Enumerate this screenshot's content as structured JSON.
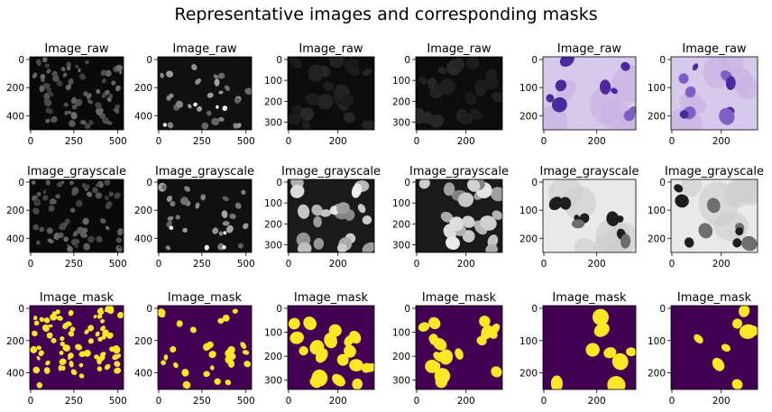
{
  "figure": {
    "title": "Representative images and corresponding masks"
  },
  "chart_data": {
    "type": "image_grid",
    "title": "Representative images and corresponding masks",
    "rows": 3,
    "cols": 6,
    "panels": [
      {
        "title": "Image_raw",
        "style": "dark-fluorescent",
        "xticks": [
          "0",
          "250",
          "500"
        ],
        "yticks": [
          "0",
          "200",
          "400"
        ]
      },
      {
        "title": "Image_raw",
        "style": "fluorescent-bright",
        "xticks": [
          "0",
          "250",
          "500"
        ],
        "yticks": [
          "0",
          "200",
          "400"
        ]
      },
      {
        "title": "Image_raw",
        "style": "very-dark",
        "xticks": [
          "0",
          "200"
        ],
        "yticks": [
          "0",
          "100",
          "200",
          "300"
        ]
      },
      {
        "title": "Image_raw",
        "style": "very-dark",
        "xticks": [
          "0",
          "200"
        ],
        "yticks": [
          "0",
          "100",
          "200",
          "300"
        ]
      },
      {
        "title": "Image_raw",
        "style": "purple-histology",
        "xticks": [
          "0",
          "200"
        ],
        "yticks": [
          "0",
          "100",
          "200"
        ]
      },
      {
        "title": "Image_raw",
        "style": "purple-histology",
        "xticks": [
          "0",
          "200"
        ],
        "yticks": [
          "0",
          "100",
          "200"
        ]
      },
      {
        "title": "Image_grayscale",
        "style": "dark-fluorescent",
        "xticks": [
          "0",
          "250",
          "500"
        ],
        "yticks": [
          "0",
          "200",
          "400"
        ]
      },
      {
        "title": "Image_grayscale",
        "style": "fluorescent-bright",
        "xticks": [
          "0",
          "250",
          "500"
        ],
        "yticks": [
          "0",
          "200",
          "400"
        ]
      },
      {
        "title": "Image_grayscale",
        "style": "gray-nuclei",
        "xticks": [
          "0",
          "200"
        ],
        "yticks": [
          "0",
          "100",
          "200",
          "300"
        ]
      },
      {
        "title": "Image_grayscale",
        "style": "gray-nuclei",
        "xticks": [
          "0",
          "200"
        ],
        "yticks": [
          "0",
          "100",
          "200",
          "300"
        ]
      },
      {
        "title": "Image_grayscale",
        "style": "gray-histology",
        "xticks": [
          "0",
          "200"
        ],
        "yticks": [
          "0",
          "100",
          "200"
        ]
      },
      {
        "title": "Image_grayscale",
        "style": "gray-histology",
        "xticks": [
          "0",
          "200"
        ],
        "yticks": [
          "0",
          "100",
          "200"
        ]
      },
      {
        "title": "Image_mask",
        "style": "mask-dense",
        "xticks": [
          "0",
          "250",
          "500"
        ],
        "yticks": [
          "0",
          "200",
          "400"
        ]
      },
      {
        "title": "Image_mask",
        "style": "mask-sparse",
        "xticks": [
          "0",
          "250",
          "500"
        ],
        "yticks": [
          "0",
          "200",
          "400"
        ]
      },
      {
        "title": "Image_mask",
        "style": "mask-medium",
        "xticks": [
          "0",
          "200"
        ],
        "yticks": [
          "0",
          "100",
          "200",
          "300"
        ]
      },
      {
        "title": "Image_mask",
        "style": "mask-medium",
        "xticks": [
          "0",
          "200"
        ],
        "yticks": [
          "0",
          "100",
          "200",
          "300"
        ]
      },
      {
        "title": "Image_mask",
        "style": "mask-sparse-large",
        "xticks": [
          "0",
          "200"
        ],
        "yticks": [
          "0",
          "100",
          "200"
        ]
      },
      {
        "title": "Image_mask",
        "style": "mask-sparse-large",
        "xticks": [
          "0",
          "200"
        ],
        "yticks": [
          "0",
          "100",
          "200"
        ]
      }
    ],
    "colors": {
      "mask_background": "#440154",
      "mask_foreground": "#fde725",
      "histology_background": "#d7c9ec",
      "histology_nucleus": "#4b2aa0"
    }
  }
}
